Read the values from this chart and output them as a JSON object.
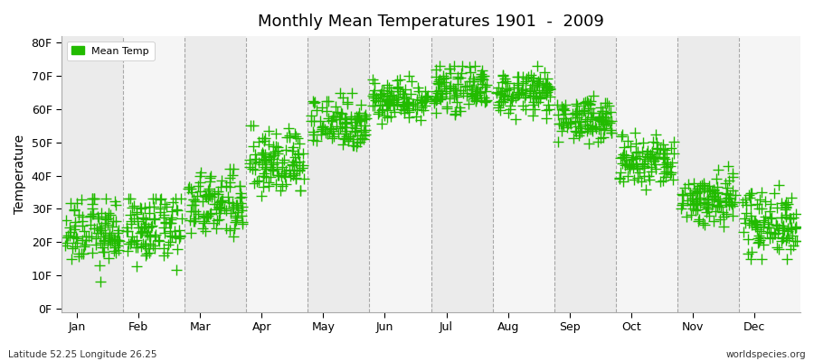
{
  "title": "Monthly Mean Temperatures 1901  -  2009",
  "ylabel": "Temperature",
  "xlabel_labels": [
    "Jan",
    "Feb",
    "Mar",
    "Apr",
    "May",
    "Jun",
    "Jul",
    "Aug",
    "Sep",
    "Oct",
    "Nov",
    "Dec"
  ],
  "ytick_labels": [
    "0F",
    "10F",
    "20F",
    "30F",
    "40F",
    "50F",
    "60F",
    "70F",
    "80F"
  ],
  "ytick_values": [
    0,
    10,
    20,
    30,
    40,
    50,
    60,
    70,
    80
  ],
  "ylim": [
    -1,
    82
  ],
  "legend_label": "Mean Temp",
  "marker_color": "#22bb00",
  "marker": "P",
  "marker_size": 4,
  "background_color": "#ffffff",
  "band_color_even": "#ebebeb",
  "band_color_odd": "#f5f5f5",
  "dash_color": "#888888",
  "footnote_left": "Latitude 52.25 Longitude 26.25",
  "footnote_right": "worldspecies.org",
  "n_years": 109,
  "monthly_means_F": [
    23,
    24,
    31,
    44,
    56,
    63,
    66,
    65,
    57,
    44,
    33,
    26
  ],
  "monthly_stds_F": [
    5,
    5,
    5,
    5,
    4,
    3,
    3,
    3,
    3,
    4,
    4,
    5
  ],
  "monthly_mins_F": [
    4,
    4,
    18,
    33,
    46,
    55,
    58,
    57,
    48,
    35,
    22,
    15
  ],
  "monthly_maxs_F": [
    33,
    33,
    42,
    55,
    65,
    70,
    73,
    73,
    65,
    55,
    43,
    38
  ]
}
